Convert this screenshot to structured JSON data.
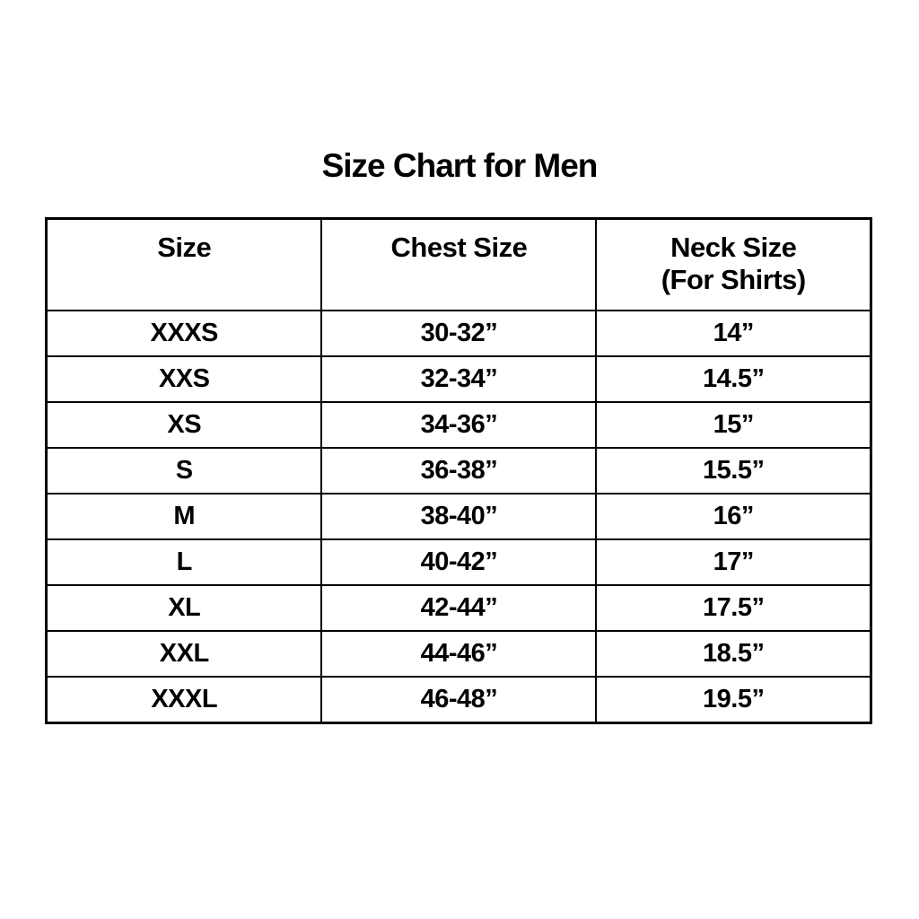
{
  "page": {
    "background": "#ffffff",
    "text_color": "#000000",
    "border_color": "#000000"
  },
  "chart_data": {
    "type": "table",
    "title": "Size Chart for Men",
    "legend_position": "none",
    "grid": "full-borders",
    "columns": [
      {
        "label": "Size"
      },
      {
        "label": "Chest Size"
      },
      {
        "label": "Neck Size",
        "sublabel": "(For Shirts)"
      }
    ],
    "rows": [
      [
        "XXXS",
        "30-32”",
        "14”"
      ],
      [
        "XXS",
        "32-34”",
        "14.5”"
      ],
      [
        "XS",
        "34-36”",
        "15”"
      ],
      [
        "S",
        "36-38”",
        "15.5”"
      ],
      [
        "M",
        "38-40”",
        "16”"
      ],
      [
        "L",
        "40-42”",
        "17”"
      ],
      [
        "XL",
        "42-44”",
        "17.5”"
      ],
      [
        "XXL",
        "44-46”",
        "18.5”"
      ],
      [
        "XXXL",
        "46-48”",
        "19.5”"
      ]
    ]
  }
}
